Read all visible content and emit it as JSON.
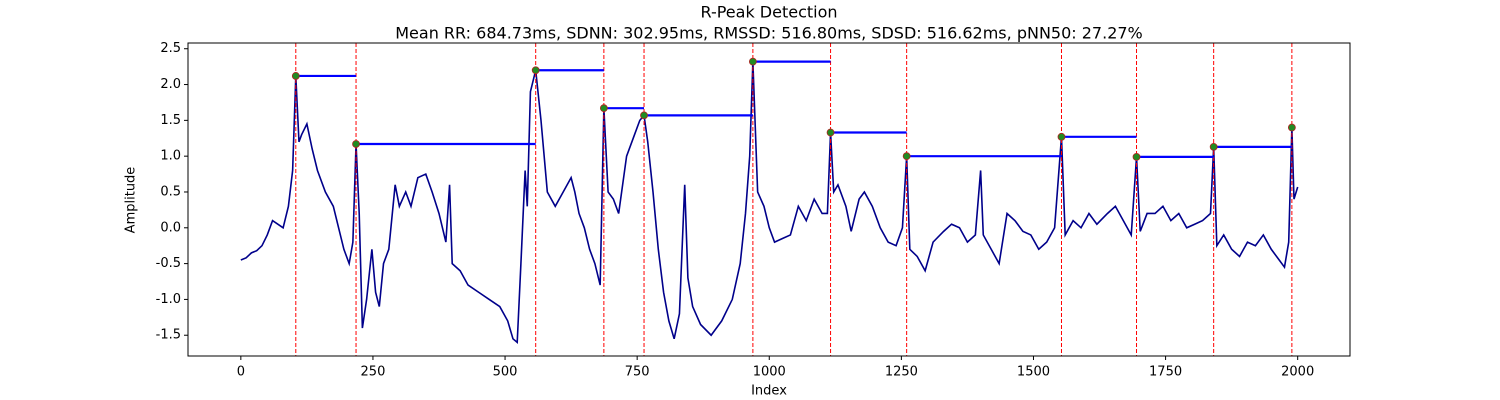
{
  "chart_data": {
    "type": "line",
    "title": "R-Peak Detection",
    "subtitle": "Mean RR: 684.73ms, SDNN: 302.95ms, RMSSD: 516.80ms, SDSD: 516.62ms, pNN50: 27.27%",
    "x_label": "Index",
    "y_label": "Amplitude",
    "xlim": [
      -100,
      2099
    ],
    "ylim": [
      -1.79,
      2.58
    ],
    "xticks": [
      0,
      250,
      500,
      750,
      1000,
      1250,
      1500,
      1750,
      2000
    ],
    "yticks": [
      -1.5,
      {
        "value": -1,
        "label": "-1.0"
      },
      -0.5,
      {
        "value": 0,
        "label": "0.0"
      },
      0.5,
      {
        "value": 1,
        "label": "1.0"
      },
      1.5,
      {
        "value": 2,
        "label": "2.0"
      },
      2.5
    ],
    "grid": false,
    "series": [
      {
        "color": "#00008b",
        "x": [
          0,
          10,
          20,
          30,
          40,
          50,
          60,
          70,
          80,
          90,
          98,
          104,
          110,
          115,
          125,
          135,
          145,
          160,
          175,
          185,
          195,
          205,
          212,
          218,
          224,
          230,
          238,
          248,
          255,
          262,
          270,
          280,
          292,
          300,
          312,
          322,
          335,
          350,
          362,
          375,
          388,
          395,
          400,
          415,
          430,
          450,
          470,
          490,
          505,
          515,
          523,
          530,
          538,
          542,
          548,
          558,
          568,
          580,
          595,
          610,
          625,
          632,
          640,
          650,
          660,
          670,
          680,
          687,
          695,
          705,
          715,
          730,
          745,
          755,
          763,
          770,
          780,
          790,
          800,
          810,
          820,
          830,
          840,
          846,
          855,
          870,
          890,
          910,
          930,
          945,
          955,
          963,
          969,
          978,
          990,
          1000,
          1010,
          1025,
          1040,
          1055,
          1070,
          1085,
          1100,
          1110,
          1116,
          1122,
          1130,
          1145,
          1155,
          1170,
          1180,
          1195,
          1210,
          1225,
          1240,
          1252,
          1260,
          1266,
          1280,
          1295,
          1310,
          1330,
          1345,
          1360,
          1375,
          1390,
          1400,
          1405,
          1420,
          1435,
          1450,
          1465,
          1480,
          1495,
          1510,
          1525,
          1540,
          1553,
          1560,
          1575,
          1590,
          1605,
          1620,
          1640,
          1655,
          1670,
          1685,
          1695,
          1702,
          1715,
          1730,
          1745,
          1760,
          1775,
          1790,
          1805,
          1820,
          1835,
          1841,
          1847,
          1860,
          1875,
          1890,
          1905,
          1920,
          1935,
          1950,
          1965,
          1975,
          1983,
          1989,
          1993,
          2000
        ],
        "values": [
          -0.45,
          -0.42,
          -0.35,
          -0.32,
          -0.25,
          -0.1,
          0.1,
          0.05,
          0.0,
          0.3,
          0.8,
          2.12,
          1.2,
          1.3,
          1.45,
          1.1,
          0.8,
          0.5,
          0.3,
          0.0,
          -0.3,
          -0.5,
          -0.2,
          1.17,
          0.2,
          -1.4,
          -1.0,
          -0.3,
          -0.9,
          -1.1,
          -0.5,
          -0.3,
          0.6,
          0.3,
          0.5,
          0.3,
          0.7,
          0.75,
          0.5,
          0.2,
          -0.2,
          0.6,
          -0.5,
          -0.6,
          -0.8,
          -0.9,
          -1.0,
          -1.1,
          -1.3,
          -1.55,
          -1.6,
          -0.5,
          0.8,
          0.3,
          1.9,
          2.2,
          1.5,
          0.5,
          0.3,
          0.5,
          0.7,
          0.5,
          0.2,
          0.0,
          -0.3,
          -0.5,
          -0.8,
          1.67,
          0.5,
          0.4,
          0.2,
          1.0,
          1.3,
          1.5,
          1.57,
          1.2,
          0.5,
          -0.3,
          -0.9,
          -1.3,
          -1.55,
          -1.2,
          0.6,
          -0.7,
          -1.1,
          -1.35,
          -1.5,
          -1.3,
          -1.0,
          -0.5,
          0.2,
          1.0,
          2.32,
          0.5,
          0.3,
          0.0,
          -0.2,
          -0.15,
          -0.1,
          0.3,
          0.1,
          0.4,
          0.2,
          0.2,
          1.33,
          0.5,
          0.6,
          0.3,
          -0.05,
          0.4,
          0.5,
          0.3,
          0.0,
          -0.2,
          -0.25,
          0.0,
          1.0,
          -0.3,
          -0.4,
          -0.6,
          -0.2,
          -0.05,
          0.05,
          0.0,
          -0.2,
          -0.1,
          0.8,
          -0.1,
          -0.3,
          -0.5,
          0.2,
          0.1,
          -0.05,
          -0.1,
          -0.3,
          -0.2,
          0.0,
          1.27,
          -0.1,
          0.1,
          0.0,
          0.2,
          0.05,
          0.2,
          0.3,
          0.1,
          -0.1,
          0.99,
          -0.05,
          0.2,
          0.2,
          0.3,
          0.1,
          0.2,
          0.0,
          0.05,
          0.1,
          0.2,
          1.13,
          -0.25,
          -0.1,
          -0.3,
          -0.4,
          -0.2,
          -0.25,
          -0.1,
          -0.3,
          -0.45,
          -0.55,
          -0.2,
          1.4,
          0.4,
          0.57
        ]
      }
    ],
    "peaks": {
      "x": [
        104,
        218,
        558,
        687,
        763,
        969,
        1116,
        1260,
        1553,
        1695,
        1841,
        1989
      ],
      "values": [
        2.12,
        1.17,
        2.2,
        1.67,
        1.57,
        2.32,
        1.33,
        1.0,
        1.27,
        0.99,
        1.13,
        1.4
      ],
      "color": "#228b22",
      "edge_color": "#b22222",
      "line_color": "#ff0000",
      "interval_color": "#0000ff"
    }
  }
}
